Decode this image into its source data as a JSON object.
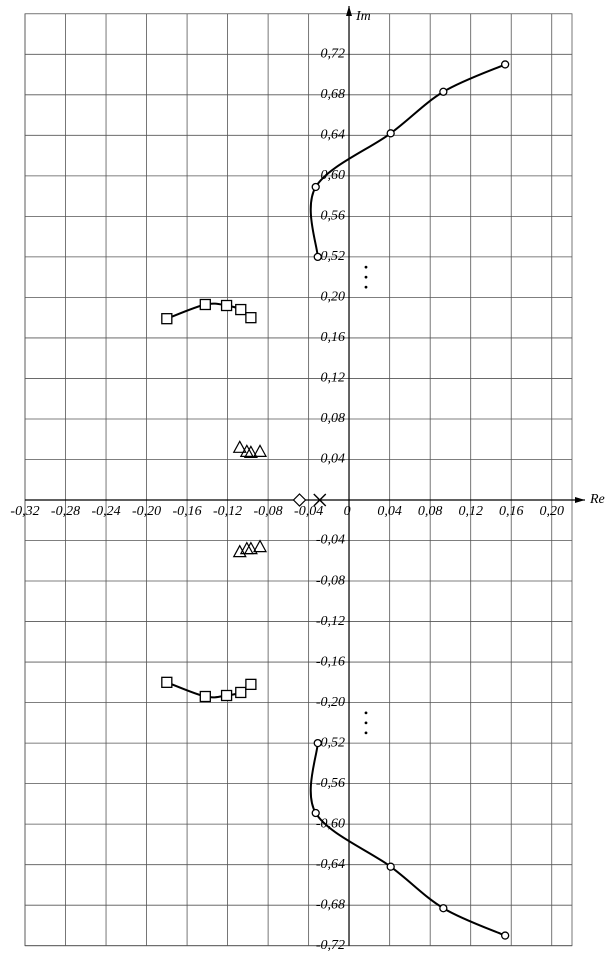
{
  "chart_data": {
    "type": "scatter",
    "x_label": "Re",
    "y_label": "Im",
    "xlim": [
      -0.32,
      0.22
    ],
    "ylim": [
      -0.72,
      0.76
    ],
    "axis_breaks": [
      [
        0.2,
        0.52
      ],
      [
        -0.52,
        -0.2
      ]
    ],
    "grid": true,
    "xticks": [
      {
        "value": -0.32,
        "label": "-0,32"
      },
      {
        "value": -0.28,
        "label": "-0,28"
      },
      {
        "value": -0.24,
        "label": "-0,24"
      },
      {
        "value": -0.2,
        "label": "-0,20"
      },
      {
        "value": -0.16,
        "label": "-0,16"
      },
      {
        "value": -0.12,
        "label": "-0,12"
      },
      {
        "value": -0.08,
        "label": "-0,08"
      },
      {
        "value": -0.04,
        "label": "-0,04"
      },
      0,
      {
        "value": 0.04,
        "label": "0,04"
      },
      {
        "value": 0.08,
        "label": "0,08"
      },
      {
        "value": 0.12,
        "label": "0,12"
      },
      {
        "value": 0.16,
        "label": "0,16"
      },
      {
        "value": 0.2,
        "label": "0,20"
      }
    ],
    "yticks": [
      {
        "value": 0.72,
        "label": "0,72"
      },
      {
        "value": 0.68,
        "label": "0,68"
      },
      {
        "value": 0.64,
        "label": "0,64"
      },
      {
        "value": 0.6,
        "label": "0,60"
      },
      {
        "value": 0.56,
        "label": "0,56"
      },
      {
        "value": 0.52,
        "label": "0,52"
      },
      {
        "value": 0.2,
        "label": "0,20"
      },
      {
        "value": 0.16,
        "label": "0,16"
      },
      {
        "value": 0.12,
        "label": "0,12"
      },
      {
        "value": 0.08,
        "label": "0,08"
      },
      {
        "value": 0.04,
        "label": "0,04"
      },
      {
        "value": -0.04,
        "label": "-0,04"
      },
      {
        "value": -0.08,
        "label": "-0,08"
      },
      {
        "value": -0.12,
        "label": "-0,12"
      },
      {
        "value": -0.16,
        "label": "-0,16"
      },
      {
        "value": -0.2,
        "label": "-0,20"
      },
      {
        "value": -0.52,
        "label": "-0,52"
      },
      {
        "value": -0.56,
        "label": "-0,56"
      },
      {
        "value": -0.6,
        "label": "-0,60"
      },
      {
        "value": -0.64,
        "label": "-0,64"
      },
      {
        "value": -0.68,
        "label": "-0,68"
      },
      {
        "value": -0.72,
        "label": "-0,72"
      }
    ],
    "series": [
      {
        "marker": "circle",
        "line": true,
        "color": "#000000",
        "x": [
          -0.031,
          -0.033,
          0.041,
          0.093,
          0.154
        ],
        "values": [
          0.52,
          0.589,
          0.642,
          0.683,
          0.71
        ]
      },
      {
        "marker": "circle",
        "line": true,
        "color": "#000000",
        "x": [
          -0.031,
          -0.033,
          0.041,
          0.093,
          0.154
        ],
        "values": [
          -0.52,
          -0.589,
          -0.642,
          -0.683,
          -0.71
        ]
      },
      {
        "marker": "square",
        "line": true,
        "color": "#000000",
        "x": [
          -0.18,
          -0.142,
          -0.121,
          -0.107,
          -0.097
        ],
        "values": [
          0.179,
          0.193,
          0.192,
          0.188,
          0.18
        ]
      },
      {
        "marker": "square",
        "line": true,
        "color": "#000000",
        "x": [
          -0.18,
          -0.142,
          -0.121,
          -0.107,
          -0.097
        ],
        "values": [
          -0.18,
          -0.194,
          -0.193,
          -0.19,
          -0.182
        ]
      },
      {
        "marker": "triangle",
        "line": false,
        "color": "#000000",
        "x": [
          -0.108,
          -0.101,
          -0.097,
          -0.088
        ],
        "values": [
          0.052,
          0.048,
          0.047,
          0.048
        ]
      },
      {
        "marker": "triangle",
        "line": false,
        "color": "#000000",
        "x": [
          -0.108,
          -0.101,
          -0.097,
          -0.088
        ],
        "values": [
          -0.051,
          -0.048,
          -0.048,
          -0.046
        ]
      },
      {
        "marker": "diamond",
        "line": false,
        "color": "#000000",
        "x": [
          -0.049
        ],
        "values": [
          0
        ]
      },
      {
        "marker": "cross",
        "line": false,
        "color": "#000000",
        "x": [
          -0.029
        ],
        "values": [
          0
        ]
      }
    ]
  }
}
